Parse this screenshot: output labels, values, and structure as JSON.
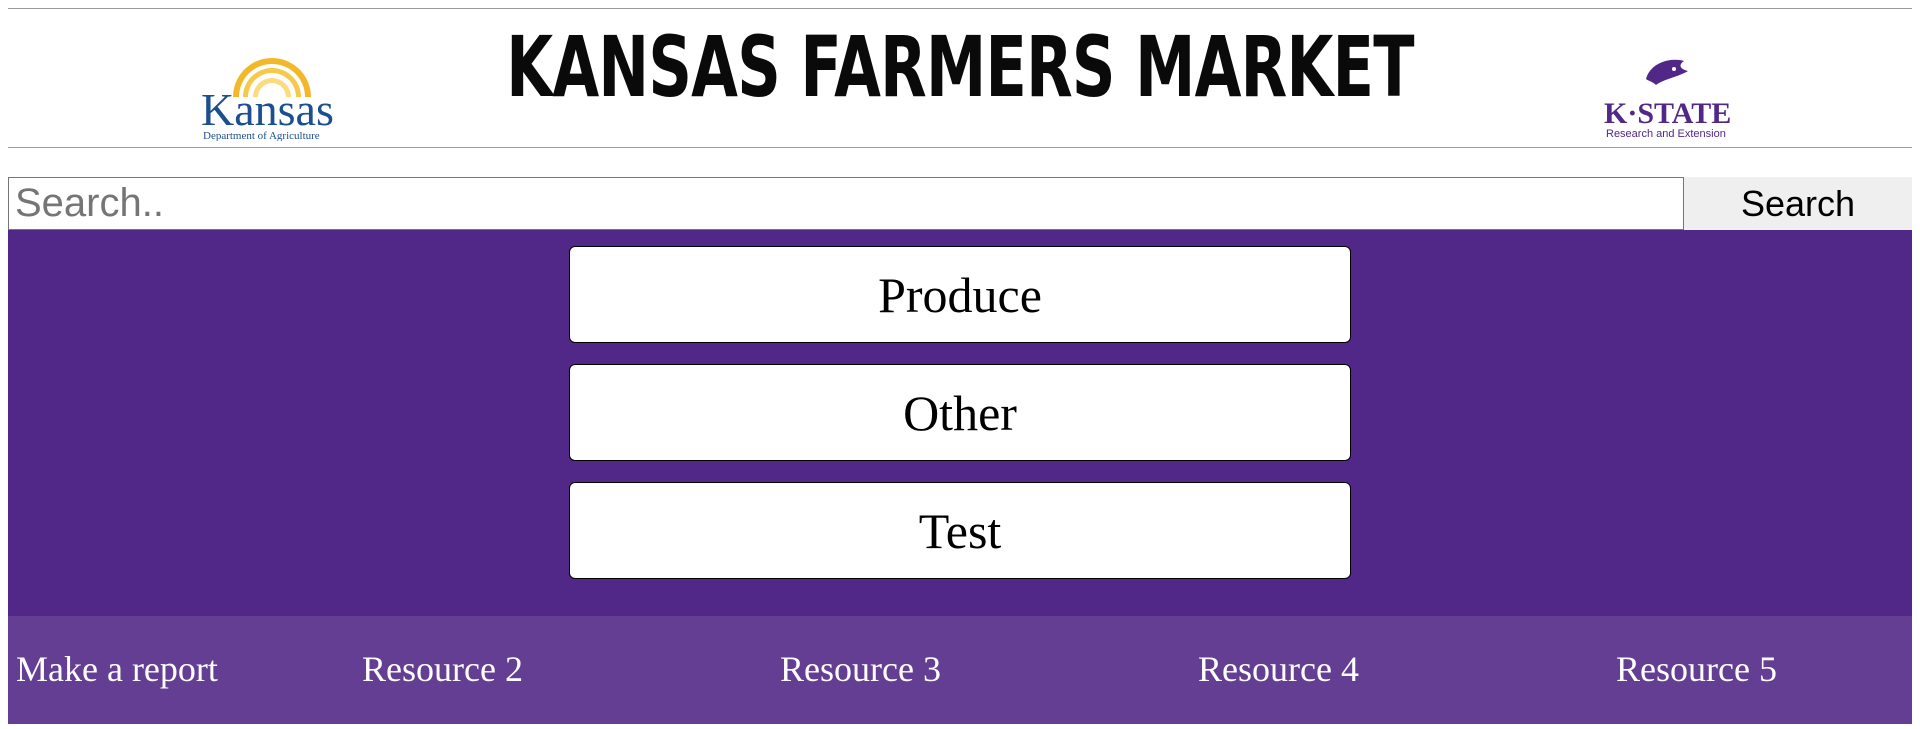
{
  "header": {
    "title": "KANSAS FARMERS MARKET",
    "left_logo": {
      "name": "Kansas",
      "subtitle": "Department of Agriculture"
    },
    "right_logo": {
      "name": "K·STATE",
      "subtitle": "Research and Extension"
    }
  },
  "search": {
    "placeholder": "Search..",
    "value": "",
    "button_label": "Search"
  },
  "categories": [
    {
      "label": "Produce"
    },
    {
      "label": "Other"
    },
    {
      "label": "Test"
    }
  ],
  "footer": {
    "links": [
      {
        "label": "Make a report"
      },
      {
        "label": "Resource 2"
      },
      {
        "label": "Resource 3"
      },
      {
        "label": "Resource 4"
      },
      {
        "label": "Resource 5"
      }
    ]
  },
  "colors": {
    "category_background": "#512887",
    "footer_background": "#643e93",
    "kstate_purple": "#512888",
    "kansas_blue": "#1b4f8f",
    "kansas_gold": "#f2b31f"
  }
}
